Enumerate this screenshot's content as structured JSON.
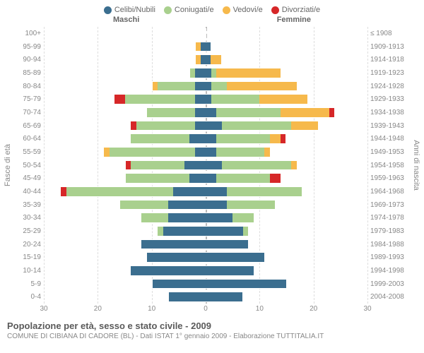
{
  "legend": [
    {
      "label": "Celibi/Nubili",
      "color": "#3b6e8f"
    },
    {
      "label": "Coniugati/e",
      "color": "#a9d08e"
    },
    {
      "label": "Vedovi/e",
      "color": "#f6b94c"
    },
    {
      "label": "Divorziati/e",
      "color": "#d62728"
    }
  ],
  "gender_labels": {
    "left": "Maschi",
    "right": "Femmine"
  },
  "y_left_label": "Fasce di età",
  "y_right_label": "Anni di nascita",
  "x_ticks": [
    30,
    20,
    10,
    0,
    10,
    20,
    30
  ],
  "x_max": 30,
  "age_brackets": [
    {
      "age": "100+",
      "birth": "≤ 1908",
      "m": [
        0,
        0,
        0,
        0
      ],
      "f": [
        0,
        0,
        0,
        0
      ]
    },
    {
      "age": "95-99",
      "birth": "1909-1913",
      "m": [
        1,
        0,
        1,
        0
      ],
      "f": [
        1,
        0,
        0,
        0
      ]
    },
    {
      "age": "90-94",
      "birth": "1914-1918",
      "m": [
        1,
        0,
        1,
        0
      ],
      "f": [
        1,
        0,
        2,
        0
      ]
    },
    {
      "age": "85-89",
      "birth": "1919-1923",
      "m": [
        2,
        1,
        0,
        0
      ],
      "f": [
        1,
        1,
        12,
        0
      ]
    },
    {
      "age": "80-84",
      "birth": "1924-1928",
      "m": [
        2,
        7,
        1,
        0
      ],
      "f": [
        1,
        3,
        13,
        0
      ]
    },
    {
      "age": "75-79",
      "birth": "1929-1933",
      "m": [
        2,
        13,
        0,
        2
      ],
      "f": [
        1,
        9,
        9,
        0
      ]
    },
    {
      "age": "70-74",
      "birth": "1934-1938",
      "m": [
        2,
        9,
        0,
        0
      ],
      "f": [
        2,
        12,
        9,
        1
      ]
    },
    {
      "age": "65-69",
      "birth": "1939-1943",
      "m": [
        2,
        11,
        0,
        1
      ],
      "f": [
        3,
        13,
        5,
        0
      ]
    },
    {
      "age": "60-64",
      "birth": "1944-1948",
      "m": [
        3,
        11,
        0,
        0
      ],
      "f": [
        2,
        10,
        2,
        1
      ]
    },
    {
      "age": "55-59",
      "birth": "1949-1953",
      "m": [
        2,
        16,
        1,
        0
      ],
      "f": [
        2,
        9,
        1,
        0
      ]
    },
    {
      "age": "50-54",
      "birth": "1954-1958",
      "m": [
        4,
        10,
        0,
        1
      ],
      "f": [
        3,
        13,
        1,
        0
      ]
    },
    {
      "age": "45-49",
      "birth": "1959-1963",
      "m": [
        3,
        12,
        0,
        0
      ],
      "f": [
        2,
        10,
        0,
        2
      ]
    },
    {
      "age": "40-44",
      "birth": "1964-1968",
      "m": [
        6,
        20,
        0,
        1
      ],
      "f": [
        4,
        14,
        0,
        0
      ]
    },
    {
      "age": "35-39",
      "birth": "1969-1973",
      "m": [
        7,
        9,
        0,
        0
      ],
      "f": [
        4,
        9,
        0,
        0
      ]
    },
    {
      "age": "30-34",
      "birth": "1974-1978",
      "m": [
        7,
        5,
        0,
        0
      ],
      "f": [
        5,
        4,
        0,
        0
      ]
    },
    {
      "age": "25-29",
      "birth": "1979-1983",
      "m": [
        8,
        1,
        0,
        0
      ],
      "f": [
        7,
        1,
        0,
        0
      ]
    },
    {
      "age": "20-24",
      "birth": "1984-1988",
      "m": [
        12,
        0,
        0,
        0
      ],
      "f": [
        8,
        0,
        0,
        0
      ]
    },
    {
      "age": "15-19",
      "birth": "1989-1993",
      "m": [
        11,
        0,
        0,
        0
      ],
      "f": [
        11,
        0,
        0,
        0
      ]
    },
    {
      "age": "10-14",
      "birth": "1994-1998",
      "m": [
        14,
        0,
        0,
        0
      ],
      "f": [
        9,
        0,
        0,
        0
      ]
    },
    {
      "age": "5-9",
      "birth": "1999-2003",
      "m": [
        10,
        0,
        0,
        0
      ],
      "f": [
        15,
        0,
        0,
        0
      ]
    },
    {
      "age": "0-4",
      "birth": "2004-2008",
      "m": [
        7,
        0,
        0,
        0
      ],
      "f": [
        7,
        0,
        0,
        0
      ]
    }
  ],
  "footer": {
    "title": "Popolazione per età, sesso e stato civile - 2009",
    "subtitle": "COMUNE DI CIBIANA DI CADORE (BL) - Dati ISTAT 1° gennaio 2009 - Elaborazione TUTTITALIA.IT"
  },
  "colors": {
    "grid": "#e0e0e0",
    "text_muted": "#888888",
    "background": "#ffffff"
  }
}
